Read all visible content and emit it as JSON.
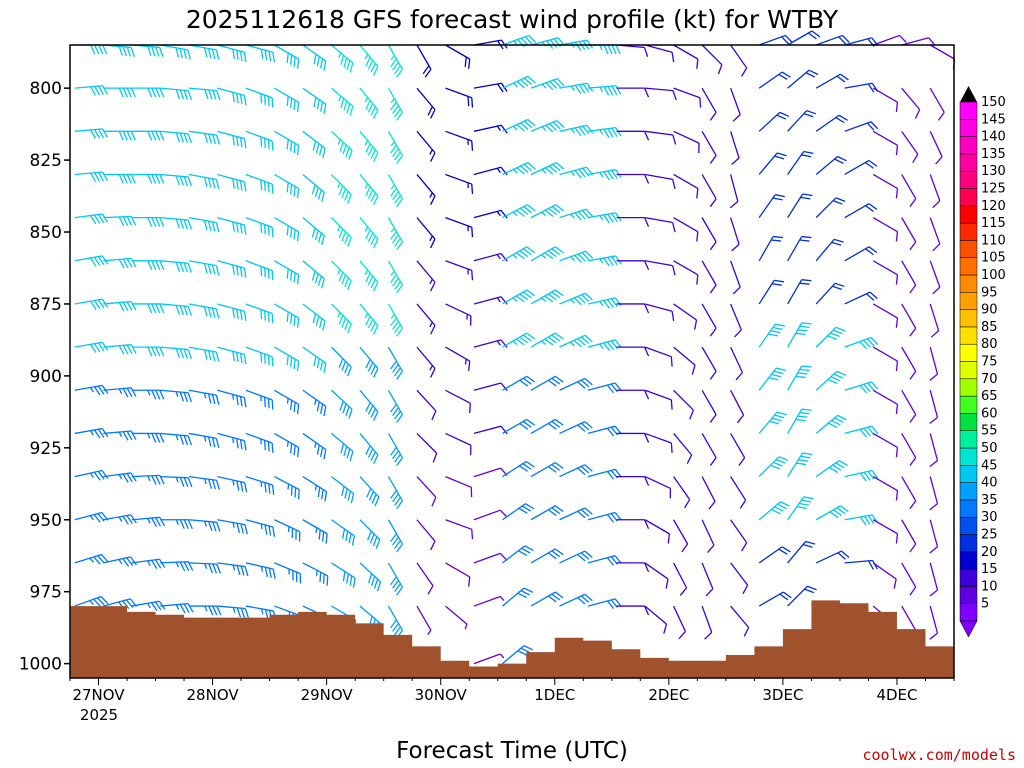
{
  "title": "2025112618 GFS forecast wind profile (kt) for WTBY",
  "credit": "coolwx.com/models",
  "colors": {
    "terrain": "#a0522d",
    "credit_text": "#cc0000"
  },
  "chart_data": {
    "type": "wind-barb-profile",
    "title": "2025112618 GFS forecast wind profile (kt) for WTBY",
    "xlabel": "Forecast Time (UTC)",
    "ylabel": "",
    "units": "kt",
    "y_axis": {
      "range": [
        1005,
        785
      ],
      "ticks": [
        "800",
        "825",
        "850",
        "875",
        "900",
        "925",
        "950",
        "975",
        "1000"
      ]
    },
    "x_axis": {
      "range_hours": [
        -6,
        180
      ],
      "tick_hours": [
        0,
        24,
        48,
        72,
        96,
        120,
        144,
        168
      ],
      "ticks": [
        "27NOV",
        "28NOV",
        "29NOV",
        "30NOV",
        "1DEC",
        "2DEC",
        "3DEC",
        "4DEC"
      ],
      "year_label": "2025"
    },
    "barb_levels": [
      785,
      800,
      815,
      830,
      845,
      860,
      875,
      890,
      905,
      920,
      935,
      950,
      965,
      980,
      1000
    ],
    "barb_interval_hours": 6,
    "surface_pressure": [
      {
        "x": -6,
        "p": 980
      },
      {
        "x": 0,
        "p": 980
      },
      {
        "x": 6,
        "p": 982
      },
      {
        "x": 12,
        "p": 983
      },
      {
        "x": 18,
        "p": 984
      },
      {
        "x": 24,
        "p": 984
      },
      {
        "x": 30,
        "p": 984
      },
      {
        "x": 36,
        "p": 983
      },
      {
        "x": 42,
        "p": 982
      },
      {
        "x": 48,
        "p": 983
      },
      {
        "x": 54,
        "p": 986
      },
      {
        "x": 60,
        "p": 990
      },
      {
        "x": 66,
        "p": 994
      },
      {
        "x": 72,
        "p": 999
      },
      {
        "x": 78,
        "p": 1001
      },
      {
        "x": 84,
        "p": 1000
      },
      {
        "x": 90,
        "p": 996
      },
      {
        "x": 96,
        "p": 991
      },
      {
        "x": 102,
        "p": 992
      },
      {
        "x": 108,
        "p": 995
      },
      {
        "x": 114,
        "p": 998
      },
      {
        "x": 120,
        "p": 999
      },
      {
        "x": 126,
        "p": 999
      },
      {
        "x": 132,
        "p": 997
      },
      {
        "x": 138,
        "p": 994
      },
      {
        "x": 144,
        "p": 988
      },
      {
        "x": 150,
        "p": 978
      },
      {
        "x": 156,
        "p": 979
      },
      {
        "x": 162,
        "p": 982
      },
      {
        "x": 168,
        "p": 988
      },
      {
        "x": 174,
        "p": 994
      },
      {
        "x": 180,
        "p": 996
      }
    ],
    "barb_rows": [
      {
        "p": 785,
        "dir": [
          270,
          275,
          275,
          280,
          280,
          285,
          285,
          300,
          305,
          310,
          320,
          330,
          330,
          300,
          260,
          250,
          255,
          260,
          270,
          275,
          285,
          300,
          315,
          325,
          250,
          240,
          250,
          255,
          250,
          255,
          300,
          330
        ]
      },
      {
        "p": 800,
        "dir": [
          265,
          270,
          270,
          275,
          275,
          285,
          290,
          300,
          305,
          310,
          320,
          330,
          320,
          290,
          260,
          245,
          250,
          260,
          265,
          270,
          275,
          290,
          330,
          340,
          235,
          230,
          240,
          260,
          300,
          320,
          330,
          340
        ]
      },
      {
        "p": 830,
        "dir": [
          265,
          270,
          270,
          275,
          280,
          285,
          290,
          300,
          310,
          315,
          320,
          330,
          320,
          290,
          255,
          245,
          245,
          255,
          260,
          270,
          280,
          300,
          330,
          345,
          220,
          215,
          230,
          240,
          300,
          330,
          340,
          350
        ]
      },
      {
        "p": 860,
        "dir": [
          260,
          265,
          270,
          275,
          280,
          285,
          290,
          300,
          310,
          315,
          320,
          330,
          320,
          290,
          255,
          240,
          240,
          250,
          260,
          270,
          280,
          300,
          330,
          340,
          210,
          210,
          220,
          240,
          300,
          330,
          340,
          350
        ]
      },
      {
        "p": 890,
        "dir": [
          260,
          265,
          270,
          275,
          280,
          285,
          290,
          300,
          305,
          315,
          320,
          330,
          320,
          300,
          255,
          240,
          240,
          245,
          255,
          270,
          290,
          310,
          330,
          335,
          215,
          210,
          225,
          250,
          300,
          330,
          345,
          350
        ]
      },
      {
        "p": 920,
        "dir": [
          260,
          265,
          270,
          275,
          280,
          285,
          290,
          300,
          305,
          310,
          320,
          330,
          315,
          295,
          255,
          240,
          240,
          245,
          255,
          270,
          290,
          320,
          330,
          330,
          220,
          210,
          230,
          255,
          300,
          330,
          345,
          350
        ]
      },
      {
        "p": 950,
        "dir": [
          255,
          260,
          265,
          270,
          275,
          280,
          285,
          295,
          300,
          305,
          315,
          330,
          320,
          290,
          250,
          235,
          240,
          245,
          255,
          270,
          300,
          330,
          335,
          325,
          230,
          215,
          240,
          260,
          300,
          330,
          345,
          350
        ]
      },
      {
        "p": 980,
        "dir": [
          250,
          255,
          260,
          265,
          270,
          275,
          280,
          290,
          295,
          300,
          310,
          330,
          330,
          310,
          250,
          230,
          240,
          245,
          255,
          270,
          310,
          335,
          340,
          320,
          240,
          225,
          250,
          270,
          310,
          330,
          345,
          350
        ]
      }
    ],
    "colorbar": {
      "min": 0,
      "max": 150,
      "step": 5,
      "tick_labels": [
        "150",
        "145",
        "140",
        "135",
        "130",
        "125",
        "120",
        "115",
        "110",
        "105",
        "100",
        "95",
        "90",
        "85",
        "80",
        "75",
        "70",
        "65",
        "60",
        "55",
        "50",
        "45",
        "40",
        "35",
        "30",
        "25",
        "20",
        "15",
        "10",
        "5"
      ]
    }
  }
}
